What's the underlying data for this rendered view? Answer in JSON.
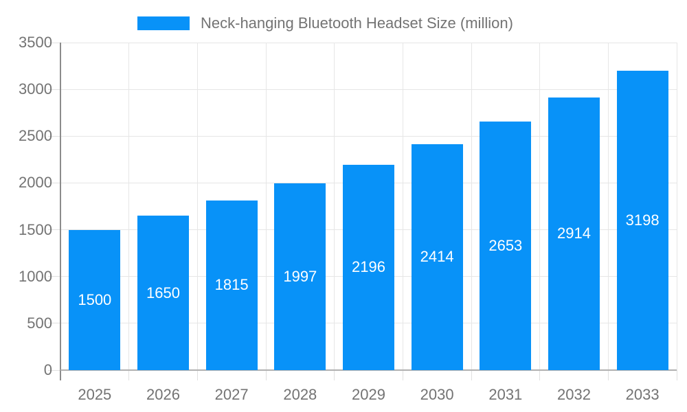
{
  "legend": {
    "swatch_color": "#0892f8",
    "label": "Neck-hanging Bluetooth Headset Size (million)"
  },
  "chart_data": {
    "type": "bar",
    "title": "Neck-hanging Bluetooth Headset Size (million)",
    "categories": [
      "2025",
      "2026",
      "2027",
      "2028",
      "2029",
      "2030",
      "2031",
      "2032",
      "2033"
    ],
    "values": [
      1500,
      1650,
      1815,
      1997,
      2196,
      2414,
      2653,
      2914,
      3198
    ],
    "xlabel": "",
    "ylabel": "",
    "ylim": [
      0,
      3500
    ],
    "yticks": [
      0,
      500,
      1000,
      1500,
      2000,
      2500,
      3000,
      3500
    ],
    "grid": true,
    "legend_position": "top",
    "value_labels": "centered-inside-bars",
    "colors": {
      "bar": "#0892f8",
      "value_label": "#ffffff",
      "axis_text": "#737373",
      "grid": "#e6e6e6",
      "y_axis_line": "#8c8c8c",
      "x_axis_line": "#b0b0b0"
    }
  }
}
